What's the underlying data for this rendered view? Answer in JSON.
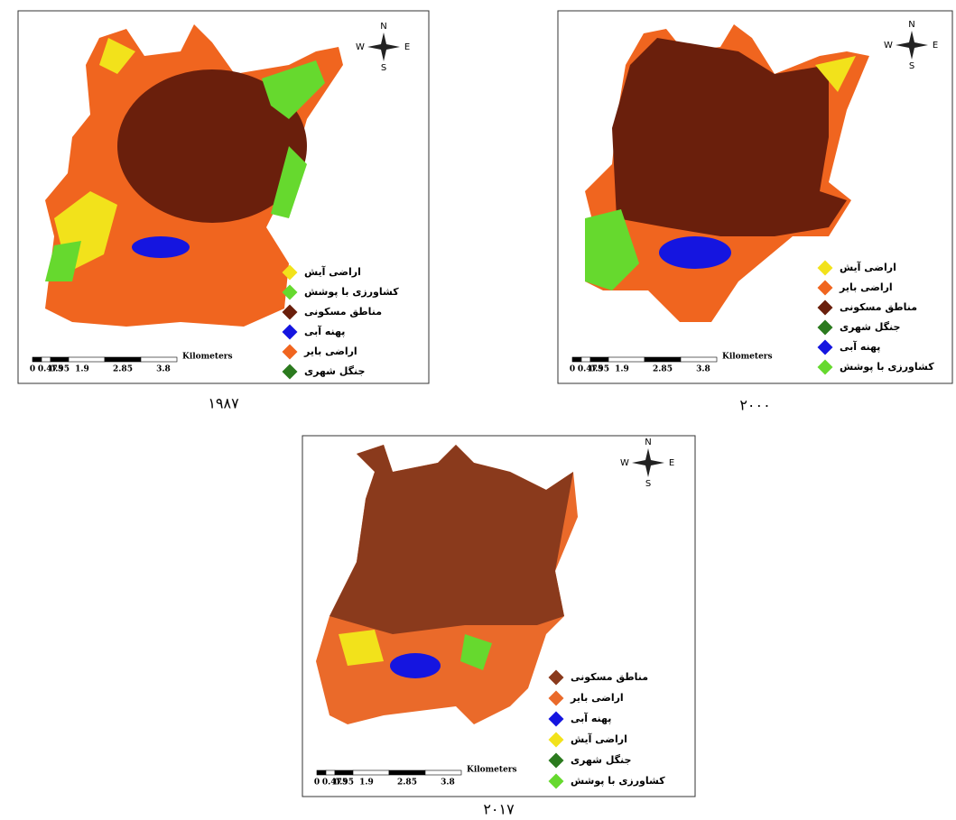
{
  "maps": [
    {
      "caption": "۱۹۸۷",
      "compass": {
        "n": "N",
        "s": "S",
        "e": "E",
        "w": "W"
      },
      "scale": {
        "labels": [
          "0",
          "0.475",
          "0.95",
          "1.9",
          "2.85",
          "3.8"
        ],
        "unit": "Kilometers"
      },
      "legend": [
        {
          "label": "اراضی آیش",
          "color": "#f2e21b"
        },
        {
          "label": "کشاورزی با پوشش",
          "color": "#66d92e"
        },
        {
          "label": "مناطق مسکونی",
          "color": "#6a1f0c"
        },
        {
          "label": "پهنه آبی",
          "color": "#1515e0"
        },
        {
          "label": "اراضی بایر",
          "color": "#f0651f"
        },
        {
          "label": "جنگل شهری",
          "color": "#2b7a1e"
        }
      ]
    },
    {
      "caption": "۲۰۰۰",
      "compass": {
        "n": "N",
        "s": "S",
        "e": "E",
        "w": "W"
      },
      "scale": {
        "labels": [
          "0",
          "0.475",
          "0.95",
          "1.9",
          "2.85",
          "3.8"
        ],
        "unit": "Kilometers"
      },
      "legend": [
        {
          "label": "اراضی آیش",
          "color": "#f2e21b"
        },
        {
          "label": "اراضی بایر",
          "color": "#f0651f"
        },
        {
          "label": "مناطق مسکونی",
          "color": "#6a1f0c"
        },
        {
          "label": "جنگل شهری",
          "color": "#2b7a1e"
        },
        {
          "label": "پهنه آبی",
          "color": "#1515e0"
        },
        {
          "label": "کشاورزی با پوشش",
          "color": "#66d92e"
        }
      ]
    },
    {
      "caption": "۲۰۱۷",
      "compass": {
        "n": "N",
        "s": "S",
        "e": "E",
        "w": "W"
      },
      "scale": {
        "labels": [
          "0",
          "0.475",
          "0.95",
          "1.9",
          "2.85",
          "3.8"
        ],
        "unit": "Kilometers"
      },
      "legend": [
        {
          "label": "مناطق مسکونی",
          "color": "#8a3a1c"
        },
        {
          "label": "اراضی بایر",
          "color": "#ea6a2a"
        },
        {
          "label": "پهنه آبی",
          "color": "#1515e0"
        },
        {
          "label": "اراضی آیش",
          "color": "#f2e21b"
        },
        {
          "label": "جنگل شهری",
          "color": "#2b7a1e"
        },
        {
          "label": "کشاورزی با پوشش",
          "color": "#66d92e"
        }
      ]
    }
  ]
}
